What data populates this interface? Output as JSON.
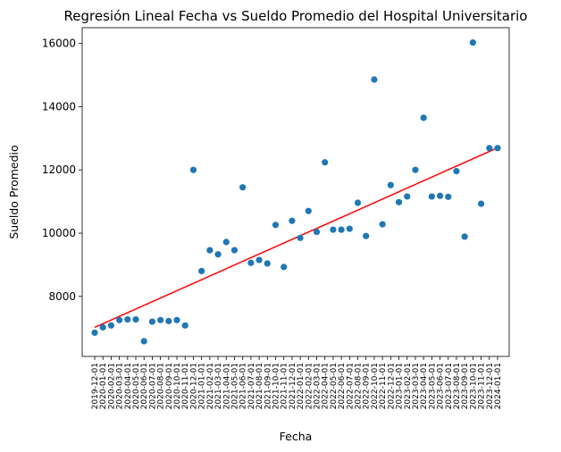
{
  "chart_data": {
    "type": "scatter",
    "title": "Regresión Lineal Fecha vs Sueldo Promedio del Hospital Universitario",
    "xlabel": "Fecha",
    "ylabel": "Sueldo Promedio",
    "grid": false,
    "ylim": [
      6100,
      16500
    ],
    "yticks": [
      8000,
      10000,
      12000,
      14000,
      16000
    ],
    "categories": [
      "2019-12-01",
      "2020-01-01",
      "2020-02-01",
      "2020-03-01",
      "2020-04-01",
      "2020-05-01",
      "2020-06-01",
      "2020-07-01",
      "2020-08-01",
      "2020-09-01",
      "2020-10-01",
      "2020-11-01",
      "2020-12-01",
      "2021-01-01",
      "2021-02-01",
      "2021-03-01",
      "2021-04-01",
      "2021-05-01",
      "2021-06-01",
      "2021-07-01",
      "2021-08-01",
      "2021-09-01",
      "2021-10-01",
      "2021-11-01",
      "2021-12-01",
      "2022-01-01",
      "2022-02-01",
      "2022-03-01",
      "2022-04-01",
      "2022-05-01",
      "2022-06-01",
      "2022-07-01",
      "2022-08-01",
      "2022-09-01",
      "2022-10-01",
      "2022-11-01",
      "2022-12-01",
      "2023-01-01",
      "2023-02-01",
      "2023-03-01",
      "2023-04-01",
      "2023-05-01",
      "2023-06-01",
      "2023-07-01",
      "2023-08-01",
      "2023-09-01",
      "2023-10-01",
      "2023-11-01",
      "2023-12-01",
      "2024-01-01"
    ],
    "series": [
      {
        "kind": "scatter",
        "color": "#1f77b4",
        "values": [
          6850,
          7020,
          7080,
          7250,
          7270,
          7270,
          6580,
          7200,
          7250,
          7220,
          7250,
          7080,
          12000,
          8800,
          9460,
          9330,
          9720,
          9460,
          11450,
          9060,
          9150,
          9040,
          10260,
          8930,
          10390,
          9850,
          10700,
          10040,
          12240,
          10110,
          10110,
          10140,
          10960,
          9910,
          14860,
          10280,
          11520,
          10980,
          11160,
          12000,
          13650,
          11160,
          11180,
          11150,
          11960,
          9890,
          16030,
          10930,
          12690,
          12690
        ]
      },
      {
        "kind": "regression-line",
        "color": "#ff0000",
        "start": 7020,
        "end": 12700
      }
    ]
  }
}
